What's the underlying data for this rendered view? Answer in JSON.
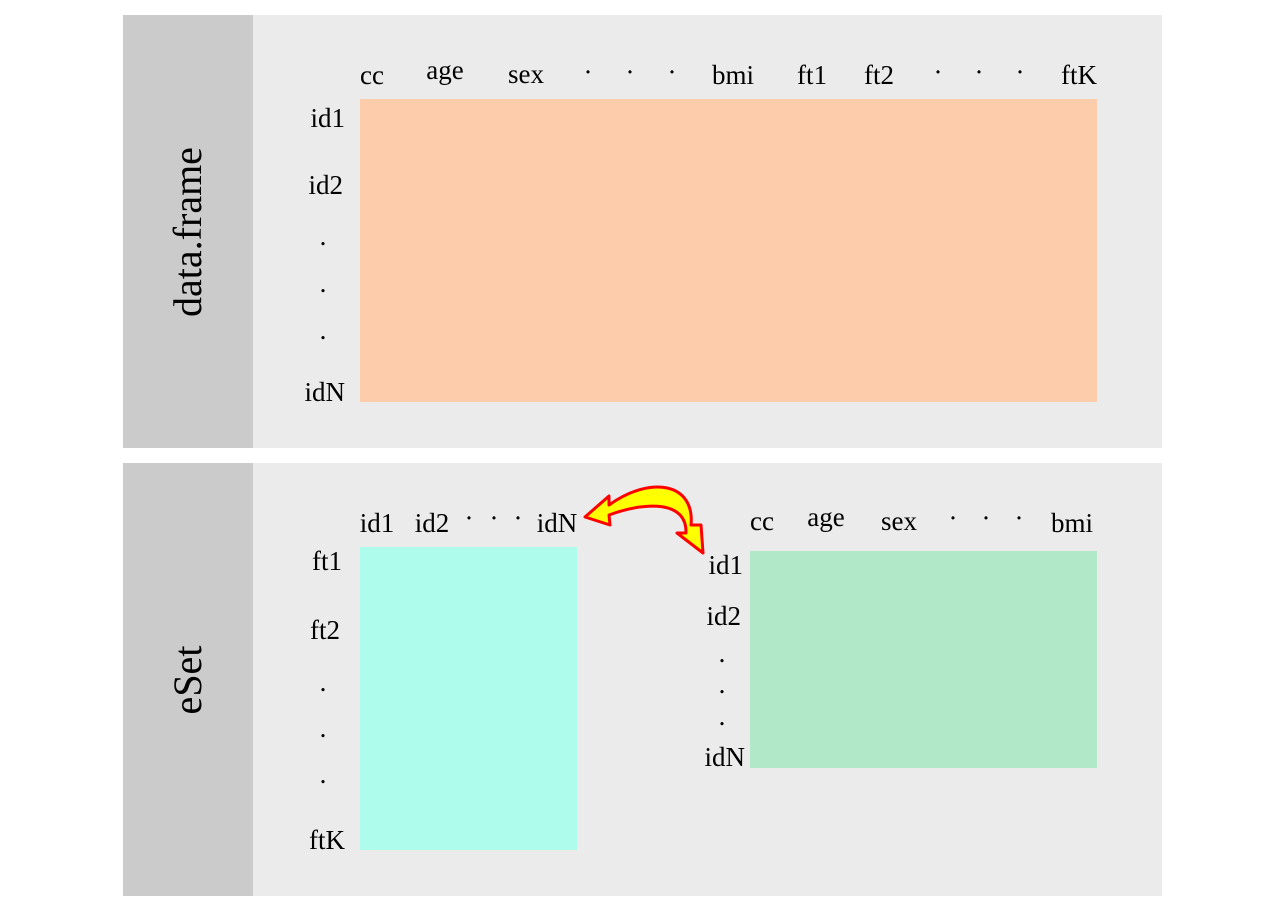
{
  "top_panel": {
    "title": "data.frame",
    "columns": [
      "cc",
      "age",
      "sex",
      "·",
      "·",
      "·",
      "bmi",
      "ft1",
      "ft2",
      "·",
      "·",
      "·",
      "ftK"
    ],
    "rows": [
      "id1",
      "id2",
      ".",
      ".",
      ".",
      "idN"
    ],
    "matrix_color": "#fdccaa"
  },
  "bottom_panel": {
    "title": "eSet",
    "expr_columns": [
      "id1",
      "id2",
      "·",
      "·",
      "·",
      "idN"
    ],
    "expr_rows": [
      "ft1",
      "ft2",
      ".",
      ".",
      ".",
      "ftK"
    ],
    "pheno_columns": [
      "cc",
      "age",
      "sex",
      "·",
      "·",
      "·",
      "bmi"
    ],
    "pheno_rows": [
      "id1",
      "id2",
      ".",
      ".",
      ".",
      "idN"
    ],
    "expr_color": "#aefdec",
    "pheno_color": "#b1e8c8",
    "arrow_fill": "#ffff00",
    "arrow_stroke": "#ff0000"
  }
}
